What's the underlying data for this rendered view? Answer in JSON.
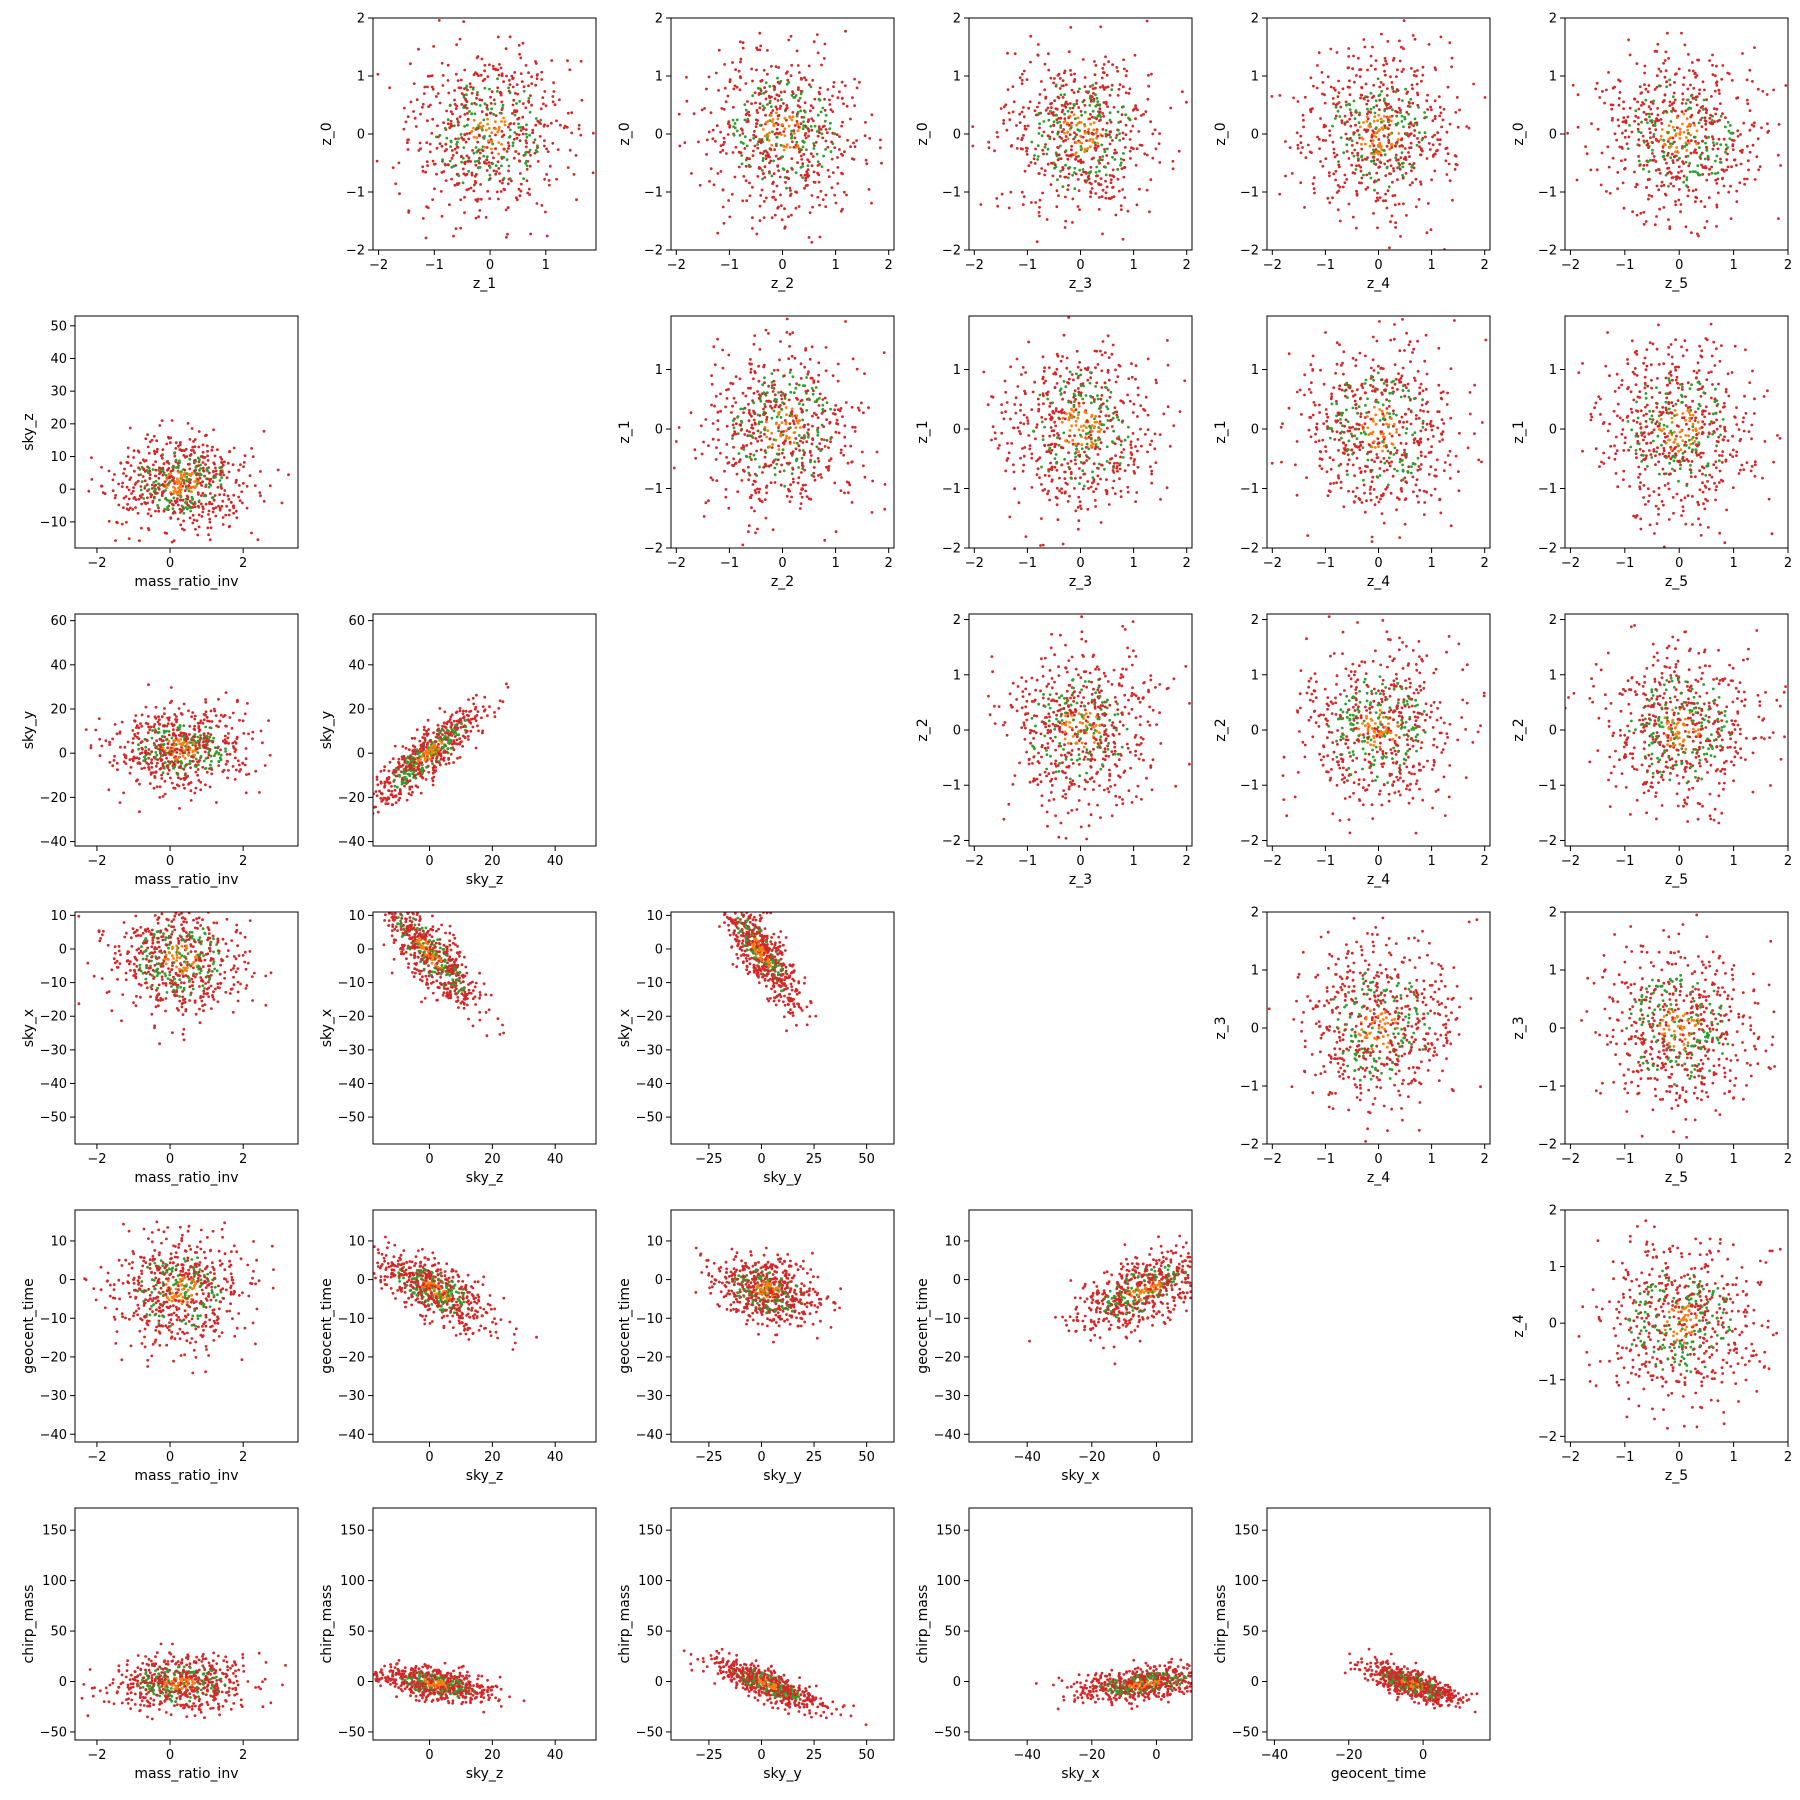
{
  "figure": {
    "description_type": "pair-plot scatter matrix",
    "colors": {
      "red": "#d62728",
      "green": "#2ca02c",
      "orange": "#ff7f0e"
    }
  },
  "chart_data": [
    {
      "type": "scatter",
      "panel": "z_0 vs z_1",
      "xlabel": "z_1",
      "ylabel": "z_0",
      "xlim": [
        -2.1,
        1.9
      ],
      "ylim": [
        -2.0,
        2.0
      ],
      "xticks": [
        -2,
        -1,
        0,
        1
      ],
      "yticks": [
        -2,
        -1,
        0,
        1,
        2
      ],
      "dist": {
        "kind": "gauss",
        "cx": 0,
        "cy": 0,
        "sx": 0.7,
        "sy": 0.7
      }
    },
    {
      "type": "scatter",
      "panel": "z_0 vs z_2",
      "xlabel": "z_2",
      "ylabel": "z_0",
      "xlim": [
        -2.1,
        2.1
      ],
      "ylim": [
        -2.0,
        2.0
      ],
      "xticks": [
        -2,
        -1,
        0,
        1,
        2
      ],
      "yticks": [
        -2,
        -1,
        0,
        1,
        2
      ],
      "dist": {
        "kind": "gauss",
        "cx": 0,
        "cy": 0,
        "sx": 0.7,
        "sy": 0.7
      }
    },
    {
      "type": "scatter",
      "panel": "z_0 vs z_3",
      "xlabel": "z_3",
      "ylabel": "z_0",
      "xlim": [
        -2.1,
        2.1
      ],
      "ylim": [
        -2.0,
        2.0
      ],
      "xticks": [
        -2,
        -1,
        0,
        1,
        2
      ],
      "yticks": [
        -2,
        -1,
        0,
        1,
        2
      ],
      "dist": {
        "kind": "gauss",
        "cx": 0,
        "cy": 0,
        "sx": 0.7,
        "sy": 0.7
      }
    },
    {
      "type": "scatter",
      "panel": "z_0 vs z_4",
      "xlabel": "z_4",
      "ylabel": "z_0",
      "xlim": [
        -2.1,
        2.1
      ],
      "ylim": [
        -2.0,
        2.0
      ],
      "xticks": [
        -2,
        -1,
        0,
        1,
        2
      ],
      "yticks": [
        -2,
        -1,
        0,
        1,
        2
      ],
      "dist": {
        "kind": "gauss",
        "cx": 0,
        "cy": 0,
        "sx": 0.7,
        "sy": 0.7
      }
    },
    {
      "type": "scatter",
      "panel": "z_0 vs z_5",
      "xlabel": "z_5",
      "ylabel": "z_0",
      "xlim": [
        -2.1,
        2.0
      ],
      "ylim": [
        -2.0,
        2.0
      ],
      "xticks": [
        -2,
        -1,
        0,
        1,
        2
      ],
      "yticks": [
        -2,
        -1,
        0,
        1,
        2
      ],
      "dist": {
        "kind": "gauss",
        "cx": 0,
        "cy": 0,
        "sx": 0.7,
        "sy": 0.7
      }
    },
    {
      "type": "scatter",
      "panel": "sky_z vs mass_ratio_inv",
      "xlabel": "mass_ratio_inv",
      "ylabel": "sky_z",
      "xlim": [
        -2.6,
        3.5
      ],
      "ylim": [
        -18,
        53
      ],
      "xticks": [
        -2,
        0,
        2
      ],
      "yticks": [
        -10,
        0,
        10,
        20,
        30,
        40,
        50
      ],
      "dist": {
        "kind": "gauss",
        "cx": 0.3,
        "cy": 2,
        "sx": 0.9,
        "sy": 7
      }
    },
    {
      "type": "scatter",
      "panel": "z_1 vs z_2",
      "xlabel": "z_2",
      "ylabel": "z_1",
      "xlim": [
        -2.1,
        2.1
      ],
      "ylim": [
        -2.0,
        1.9
      ],
      "xticks": [
        -2,
        -1,
        0,
        1,
        2
      ],
      "yticks": [
        -2,
        -1,
        0,
        1
      ],
      "dist": {
        "kind": "gauss",
        "cx": 0,
        "cy": 0,
        "sx": 0.7,
        "sy": 0.7
      }
    },
    {
      "type": "scatter",
      "panel": "z_1 vs z_3",
      "xlabel": "z_3",
      "ylabel": "z_1",
      "xlim": [
        -2.1,
        2.1
      ],
      "ylim": [
        -2.0,
        1.9
      ],
      "xticks": [
        -2,
        -1,
        0,
        1,
        2
      ],
      "yticks": [
        -2,
        -1,
        0,
        1
      ],
      "dist": {
        "kind": "gauss",
        "cx": 0,
        "cy": 0,
        "sx": 0.7,
        "sy": 0.7
      }
    },
    {
      "type": "scatter",
      "panel": "z_1 vs z_4",
      "xlabel": "z_4",
      "ylabel": "z_1",
      "xlim": [
        -2.1,
        2.1
      ],
      "ylim": [
        -2.0,
        1.9
      ],
      "xticks": [
        -2,
        -1,
        0,
        1,
        2
      ],
      "yticks": [
        -2,
        -1,
        0,
        1
      ],
      "dist": {
        "kind": "gauss",
        "cx": 0,
        "cy": 0,
        "sx": 0.7,
        "sy": 0.7
      }
    },
    {
      "type": "scatter",
      "panel": "z_1 vs z_5",
      "xlabel": "z_5",
      "ylabel": "z_1",
      "xlim": [
        -2.1,
        2.0
      ],
      "ylim": [
        -2.0,
        1.9
      ],
      "xticks": [
        -2,
        -1,
        0,
        1,
        2
      ],
      "yticks": [
        -2,
        -1,
        0,
        1
      ],
      "dist": {
        "kind": "gauss",
        "cx": 0,
        "cy": 0,
        "sx": 0.7,
        "sy": 0.7
      }
    },
    {
      "type": "scatter",
      "panel": "sky_y vs mass_ratio_inv",
      "xlabel": "mass_ratio_inv",
      "ylabel": "sky_y",
      "xlim": [
        -2.6,
        3.5
      ],
      "ylim": [
        -42,
        63
      ],
      "xticks": [
        -2,
        0,
        2
      ],
      "yticks": [
        -40,
        -20,
        0,
        20,
        40,
        60
      ],
      "dist": {
        "kind": "gauss",
        "cx": 0.3,
        "cy": 2,
        "sx": 0.9,
        "sy": 9
      }
    },
    {
      "type": "scatter",
      "panel": "sky_y vs sky_z",
      "xlabel": "sky_z",
      "ylabel": "sky_y",
      "xlim": [
        -18,
        53
      ],
      "ylim": [
        -42,
        63
      ],
      "xticks": [
        0,
        20,
        40
      ],
      "yticks": [
        -40,
        -20,
        0,
        20,
        40,
        60
      ],
      "dist": {
        "kind": "corr",
        "cx": 0,
        "cy": 0,
        "sx": 9,
        "sy": 9,
        "slope": 1.1
      }
    },
    {
      "type": "scatter",
      "panel": "z_2 vs z_3",
      "xlabel": "z_3",
      "ylabel": "z_2",
      "xlim": [
        -2.1,
        2.1
      ],
      "ylim": [
        -2.1,
        2.1
      ],
      "xticks": [
        -2,
        -1,
        0,
        1,
        2
      ],
      "yticks": [
        -2,
        -1,
        0,
        1,
        2
      ],
      "dist": {
        "kind": "gauss",
        "cx": 0,
        "cy": 0,
        "sx": 0.7,
        "sy": 0.7
      }
    },
    {
      "type": "scatter",
      "panel": "z_2 vs z_4",
      "xlabel": "z_4",
      "ylabel": "z_2",
      "xlim": [
        -2.1,
        2.1
      ],
      "ylim": [
        -2.1,
        2.1
      ],
      "xticks": [
        -2,
        -1,
        0,
        1,
        2
      ],
      "yticks": [
        -2,
        -1,
        0,
        1,
        2
      ],
      "dist": {
        "kind": "gauss",
        "cx": 0,
        "cy": 0,
        "sx": 0.7,
        "sy": 0.7
      }
    },
    {
      "type": "scatter",
      "panel": "z_2 vs z_5",
      "xlabel": "z_5",
      "ylabel": "z_2",
      "xlim": [
        -2.1,
        2.0
      ],
      "ylim": [
        -2.1,
        2.1
      ],
      "xticks": [
        -2,
        -1,
        0,
        1,
        2
      ],
      "yticks": [
        -2,
        -1,
        0,
        1,
        2
      ],
      "dist": {
        "kind": "gauss",
        "cx": 0,
        "cy": 0,
        "sx": 0.7,
        "sy": 0.7
      }
    },
    {
      "type": "scatter",
      "panel": "sky_x vs mass_ratio_inv",
      "xlabel": "mass_ratio_inv",
      "ylabel": "sky_x",
      "xlim": [
        -2.6,
        3.5
      ],
      "ylim": [
        -58,
        11
      ],
      "xticks": [
        -2,
        0,
        2
      ],
      "yticks": [
        -50,
        -40,
        -30,
        -20,
        -10,
        0,
        10
      ],
      "dist": {
        "kind": "gauss",
        "cx": 0.3,
        "cy": -3,
        "sx": 0.9,
        "sy": 8
      }
    },
    {
      "type": "scatter",
      "panel": "sky_x vs sky_z",
      "xlabel": "sky_z",
      "ylabel": "sky_x",
      "xlim": [
        -18,
        53
      ],
      "ylim": [
        -58,
        11
      ],
      "xticks": [
        0,
        20,
        40
      ],
      "yticks": [
        -50,
        -40,
        -30,
        -20,
        -10,
        0,
        10
      ],
      "dist": {
        "kind": "corr",
        "cx": 0,
        "cy": -1,
        "sx": 8,
        "sy": 8,
        "slope": -0.9
      }
    },
    {
      "type": "scatter",
      "panel": "sky_x vs sky_y",
      "xlabel": "sky_y",
      "ylabel": "sky_x",
      "xlim": [
        -43,
        63
      ],
      "ylim": [
        -58,
        11
      ],
      "xticks": [
        -25,
        0,
        25,
        50
      ],
      "yticks": [
        -50,
        -40,
        -30,
        -20,
        -10,
        0,
        10
      ],
      "dist": {
        "kind": "corr",
        "cx": 0,
        "cy": -1,
        "sx": 9,
        "sy": 8,
        "slope": -0.75
      }
    },
    {
      "type": "scatter",
      "panel": "z_3 vs z_4",
      "xlabel": "z_4",
      "ylabel": "z_3",
      "xlim": [
        -2.1,
        2.1
      ],
      "ylim": [
        -2.0,
        2.0
      ],
      "xticks": [
        -2,
        -1,
        0,
        1,
        2
      ],
      "yticks": [
        -2,
        -1,
        0,
        1,
        2
      ],
      "dist": {
        "kind": "gauss",
        "cx": 0,
        "cy": 0,
        "sx": 0.7,
        "sy": 0.7
      }
    },
    {
      "type": "scatter",
      "panel": "z_3 vs z_5",
      "xlabel": "z_5",
      "ylabel": "z_3",
      "xlim": [
        -2.1,
        2.0
      ],
      "ylim": [
        -2.0,
        2.0
      ],
      "xticks": [
        -2,
        -1,
        0,
        1,
        2
      ],
      "yticks": [
        -2,
        -1,
        0,
        1,
        2
      ],
      "dist": {
        "kind": "gauss",
        "cx": 0,
        "cy": 0,
        "sx": 0.7,
        "sy": 0.7
      }
    },
    {
      "type": "scatter",
      "panel": "geocent_time vs mass_ratio_inv",
      "xlabel": "mass_ratio_inv",
      "ylabel": "geocent_time",
      "xlim": [
        -2.6,
        3.5
      ],
      "ylim": [
        -42,
        18
      ],
      "xticks": [
        -2,
        0,
        2
      ],
      "yticks": [
        -40,
        -30,
        -20,
        -10,
        0,
        10
      ],
      "dist": {
        "kind": "gauss",
        "cx": 0.3,
        "cy": -3,
        "sx": 0.9,
        "sy": 7
      }
    },
    {
      "type": "scatter",
      "panel": "geocent_time vs sky_z",
      "xlabel": "sky_z",
      "ylabel": "geocent_time",
      "xlim": [
        -18,
        53
      ],
      "ylim": [
        -42,
        18
      ],
      "xticks": [
        0,
        20,
        40
      ],
      "yticks": [
        -40,
        -30,
        -20,
        -10,
        0,
        10
      ],
      "dist": {
        "kind": "corr",
        "cx": 2,
        "cy": -3,
        "sx": 9,
        "sy": 6,
        "slope": -0.35
      }
    },
    {
      "type": "scatter",
      "panel": "geocent_time vs sky_y",
      "xlabel": "sky_y",
      "ylabel": "geocent_time",
      "xlim": [
        -43,
        63
      ],
      "ylim": [
        -42,
        18
      ],
      "xticks": [
        -25,
        0,
        25,
        50
      ],
      "yticks": [
        -40,
        -30,
        -20,
        -10,
        0,
        10
      ],
      "dist": {
        "kind": "corr",
        "cx": 3,
        "cy": -3,
        "sx": 12,
        "sy": 7,
        "slope": -0.1
      }
    },
    {
      "type": "scatter",
      "panel": "geocent_time vs sky_x",
      "xlabel": "sky_x",
      "ylabel": "geocent_time",
      "xlim": [
        -58,
        11
      ],
      "ylim": [
        -42,
        18
      ],
      "xticks": [
        -40,
        -20,
        0
      ],
      "yticks": [
        -40,
        -30,
        -20,
        -10,
        0,
        10
      ],
      "dist": {
        "kind": "corr",
        "cx": -4,
        "cy": -3,
        "sx": 10,
        "sy": 7,
        "slope": 0.3
      }
    },
    {
      "type": "scatter",
      "panel": "z_4 vs z_5",
      "xlabel": "z_5",
      "ylabel": "z_4",
      "xlim": [
        -2.1,
        2.0
      ],
      "ylim": [
        -2.1,
        2.0
      ],
      "xticks": [
        -2,
        -1,
        0,
        1,
        2
      ],
      "yticks": [
        -2,
        -1,
        0,
        1,
        2
      ],
      "dist": {
        "kind": "gauss",
        "cx": 0,
        "cy": 0,
        "sx": 0.7,
        "sy": 0.7
      }
    },
    {
      "type": "scatter",
      "panel": "chirp_mass vs mass_ratio_inv",
      "xlabel": "mass_ratio_inv",
      "ylabel": "chirp_mass",
      "xlim": [
        -2.6,
        3.5
      ],
      "ylim": [
        -58,
        172
      ],
      "xticks": [
        -2,
        0,
        2
      ],
      "yticks": [
        -50,
        0,
        50,
        100,
        150
      ],
      "dist": {
        "kind": "gauss",
        "cx": 0.3,
        "cy": -2,
        "sx": 0.9,
        "sy": 13
      }
    },
    {
      "type": "scatter",
      "panel": "chirp_mass vs sky_z",
      "xlabel": "sky_z",
      "ylabel": "chirp_mass",
      "xlim": [
        -18,
        53
      ],
      "ylim": [
        -58,
        172
      ],
      "xticks": [
        0,
        20,
        40
      ],
      "yticks": [
        -50,
        0,
        50,
        100,
        150
      ],
      "dist": {
        "kind": "corr",
        "cx": 2,
        "cy": -2,
        "sx": 9,
        "sy": 13,
        "slope": -0.5
      }
    },
    {
      "type": "scatter",
      "panel": "chirp_mass vs sky_y",
      "xlabel": "sky_y",
      "ylabel": "chirp_mass",
      "xlim": [
        -43,
        63
      ],
      "ylim": [
        -58,
        172
      ],
      "xticks": [
        -25,
        0,
        25,
        50
      ],
      "yticks": [
        -50,
        0,
        50,
        100,
        150
      ],
      "dist": {
        "kind": "corr",
        "cx": 3,
        "cy": -3,
        "sx": 12,
        "sy": 12,
        "slope": -0.8
      }
    },
    {
      "type": "scatter",
      "panel": "chirp_mass vs sky_x",
      "xlabel": "sky_x",
      "ylabel": "chirp_mass",
      "xlim": [
        -58,
        11
      ],
      "ylim": [
        -58,
        172
      ],
      "xticks": [
        -40,
        -20,
        0
      ],
      "yticks": [
        -50,
        0,
        50,
        100,
        150
      ],
      "dist": {
        "kind": "corr",
        "cx": -4,
        "cy": -2,
        "sx": 10,
        "sy": 13,
        "slope": 0.4
      }
    },
    {
      "type": "scatter",
      "panel": "chirp_mass vs geocent_time",
      "xlabel": "geocent_time",
      "ylabel": "chirp_mass",
      "xlim": [
        -42,
        18
      ],
      "ylim": [
        -58,
        172
      ],
      "xticks": [
        -40,
        -20,
        0
      ],
      "yticks": [
        -50,
        0,
        50,
        100,
        150
      ],
      "dist": {
        "kind": "corr",
        "cx": -3,
        "cy": -3,
        "sx": 6,
        "sy": 12,
        "slope": -1.2
      }
    }
  ]
}
